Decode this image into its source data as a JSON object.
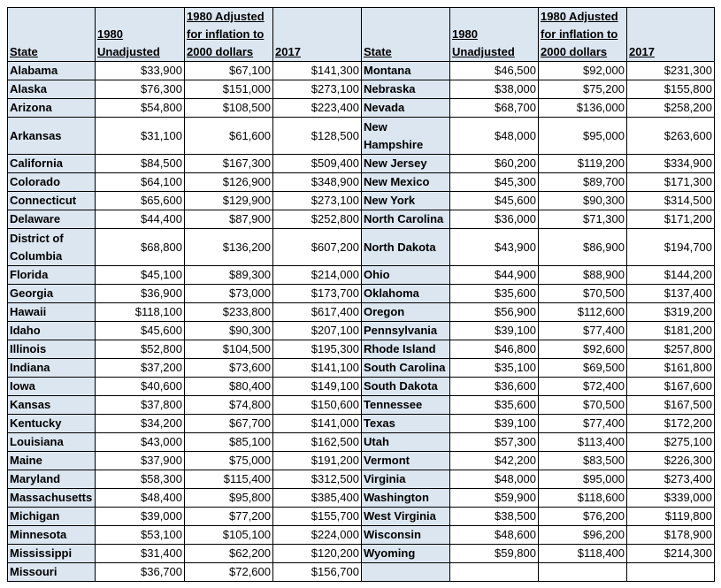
{
  "headers": {
    "left": [
      "State",
      "1980 Unadjusted",
      "1980 Adjusted for inflation to 2000 dollars",
      "2017"
    ],
    "right": [
      "State",
      "1980 Unadjusted",
      "1980 Adjusted for inflation to 2000 dollars",
      "2017"
    ]
  },
  "rows": [
    {
      "l": [
        "Alabama",
        "$33,900",
        "$67,100",
        "$141,300"
      ],
      "r": [
        "Montana",
        "$46,500",
        "$92,000",
        "$231,300"
      ]
    },
    {
      "l": [
        "Alaska",
        "$76,300",
        "$151,000",
        "$273,100"
      ],
      "r": [
        "Nebraska",
        "$38,000",
        "$75,200",
        "$155,800"
      ]
    },
    {
      "l": [
        "Arizona",
        "$54,800",
        "$108,500",
        "$223,400"
      ],
      "r": [
        "Nevada",
        "$68,700",
        "$136,000",
        "$258,200"
      ]
    },
    {
      "l": [
        "Arkansas",
        "$31,100",
        "$61,600",
        "$128,500"
      ],
      "r": [
        "New Hampshire",
        "$48,000",
        "$95,000",
        "$263,600"
      ]
    },
    {
      "l": [
        "California",
        "$84,500",
        "$167,300",
        "$509,400"
      ],
      "r": [
        "New Jersey",
        "$60,200",
        "$119,200",
        "$334,900"
      ]
    },
    {
      "l": [
        "Colorado",
        "$64,100",
        "$126,900",
        "$348,900"
      ],
      "r": [
        "New Mexico",
        "$45,300",
        "$89,700",
        "$171,300"
      ]
    },
    {
      "l": [
        "Connecticut",
        "$65,600",
        "$129,900",
        "$273,100"
      ],
      "r": [
        "New York",
        "$45,600",
        "$90,300",
        "$314,500"
      ]
    },
    {
      "l": [
        "Delaware",
        "$44,400",
        "$87,900",
        "$252,800"
      ],
      "r": [
        "North Carolina",
        "$36,000",
        "$71,300",
        "$171,200"
      ]
    },
    {
      "l": [
        "District of Columbia",
        "$68,800",
        "$136,200",
        "$607,200"
      ],
      "r": [
        "North Dakota",
        "$43,900",
        "$86,900",
        "$194,700"
      ]
    },
    {
      "l": [
        "Florida",
        "$45,100",
        "$89,300",
        "$214,000"
      ],
      "r": [
        "Ohio",
        "$44,900",
        "$88,900",
        "$144,200"
      ]
    },
    {
      "l": [
        "Georgia",
        "$36,900",
        "$73,000",
        "$173,700"
      ],
      "r": [
        "Oklahoma",
        "$35,600",
        "$70,500",
        "$137,400"
      ]
    },
    {
      "l": [
        "Hawaii",
        "$118,100",
        "$233,800",
        "$617,400"
      ],
      "r": [
        "Oregon",
        "$56,900",
        "$112,600",
        "$319,200"
      ]
    },
    {
      "l": [
        "Idaho",
        "$45,600",
        "$90,300",
        "$207,100"
      ],
      "r": [
        "Pennsylvania",
        "$39,100",
        "$77,400",
        "$181,200"
      ]
    },
    {
      "l": [
        "Illinois",
        "$52,800",
        "$104,500",
        "$195,300"
      ],
      "r": [
        "Rhode Island",
        "$46,800",
        "$92,600",
        "$257,800"
      ]
    },
    {
      "l": [
        "Indiana",
        "$37,200",
        "$73,600",
        "$141,100"
      ],
      "r": [
        "South Carolina",
        "$35,100",
        "$69,500",
        "$161,800"
      ]
    },
    {
      "l": [
        "Iowa",
        "$40,600",
        "$80,400",
        "$149,100"
      ],
      "r": [
        "South Dakota",
        "$36,600",
        "$72,400",
        "$167,600"
      ]
    },
    {
      "l": [
        "Kansas",
        "$37,800",
        "$74,800",
        "$150,600"
      ],
      "r": [
        "Tennessee",
        "$35,600",
        "$70,500",
        "$167,500"
      ]
    },
    {
      "l": [
        "Kentucky",
        "$34,200",
        "$67,700",
        "$141,000"
      ],
      "r": [
        "Texas",
        "$39,100",
        "$77,400",
        "$172,200"
      ]
    },
    {
      "l": [
        "Louisiana",
        "$43,000",
        "$85,100",
        "$162,500"
      ],
      "r": [
        "Utah",
        "$57,300",
        "$113,400",
        "$275,100"
      ]
    },
    {
      "l": [
        "Maine",
        "$37,900",
        "$75,000",
        "$191,200"
      ],
      "r": [
        "Vermont",
        "$42,200",
        "$83,500",
        "$226,300"
      ]
    },
    {
      "l": [
        "Maryland",
        "$58,300",
        "$115,400",
        "$312,500"
      ],
      "r": [
        "Virginia",
        "$48,000",
        "$95,000",
        "$273,400"
      ]
    },
    {
      "l": [
        "Massachusetts",
        "$48,400",
        "$95,800",
        "$385,400"
      ],
      "r": [
        "Washington",
        "$59,900",
        "$118,600",
        "$339,000"
      ]
    },
    {
      "l": [
        "Michigan",
        "$39,000",
        "$77,200",
        "$155,700"
      ],
      "r": [
        "West Virginia",
        "$38,500",
        "$76,200",
        "$119,800"
      ]
    },
    {
      "l": [
        "Minnesota",
        "$53,100",
        "$105,100",
        "$224,000"
      ],
      "r": [
        "Wisconsin",
        "$48,600",
        "$96,200",
        "$178,900"
      ]
    },
    {
      "l": [
        "Mississippi",
        "$31,400",
        "$62,200",
        "$120,200"
      ],
      "r": [
        "Wyoming",
        "$59,800",
        "$118,400",
        "$214,300"
      ]
    },
    {
      "l": [
        "Missouri",
        "$36,700",
        "$72,600",
        "$156,700"
      ],
      "r": [
        "",
        "",
        "",
        ""
      ]
    }
  ]
}
